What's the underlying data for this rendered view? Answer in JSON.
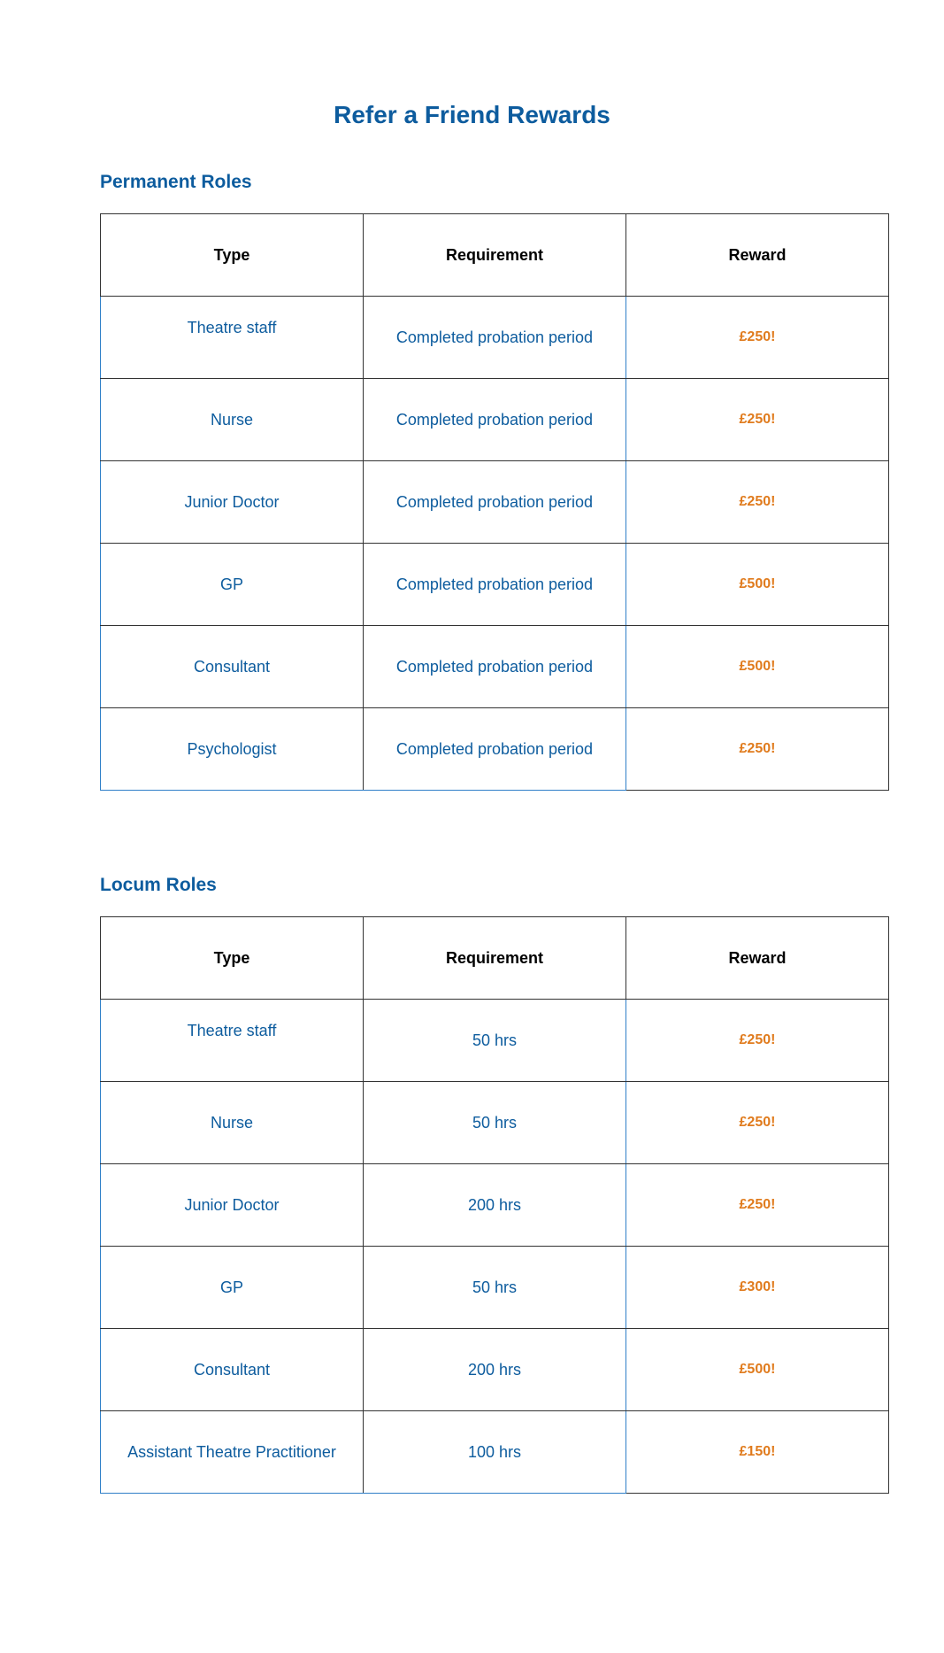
{
  "page_title": "Refer a Friend Rewards",
  "headers": {
    "type": "Type",
    "requirement": "Requirement",
    "reward": "Reward"
  },
  "permanent": {
    "heading": "Permanent Roles",
    "rows": [
      {
        "type": "Theatre staff",
        "requirement": "Completed probation period",
        "reward": "£250!"
      },
      {
        "type": "Nurse",
        "requirement": "Completed probation period",
        "reward": "£250!"
      },
      {
        "type": "Junior Doctor",
        "requirement": "Completed probation period",
        "reward": "£250!"
      },
      {
        "type": "GP",
        "requirement": "Completed probation period",
        "reward": "£500!"
      },
      {
        "type": "Consultant",
        "requirement": "Completed probation period",
        "reward": "£500!"
      },
      {
        "type": "Psychologist",
        "requirement": "Completed probation period",
        "reward": "£250!"
      }
    ]
  },
  "locum": {
    "heading": "Locum Roles",
    "rows": [
      {
        "type": "Theatre staff",
        "requirement": "50 hrs",
        "reward": "£250!"
      },
      {
        "type": "Nurse",
        "requirement": "50 hrs",
        "reward": "£250!"
      },
      {
        "type": "Junior Doctor",
        "requirement": "200 hrs",
        "reward": "£250!"
      },
      {
        "type": "GP",
        "requirement": "50 hrs",
        "reward": "£300!"
      },
      {
        "type": "Consultant",
        "requirement": "200 hrs",
        "reward": "£500!"
      },
      {
        "type": "Assistant Theatre Practitioner",
        "requirement": "100 hrs",
        "reward": "£150!"
      }
    ]
  },
  "colors": {
    "brand_blue": "#0d5c9e",
    "reward_orange": "#e07b1d",
    "rule_blue": "#2f7fc8"
  }
}
